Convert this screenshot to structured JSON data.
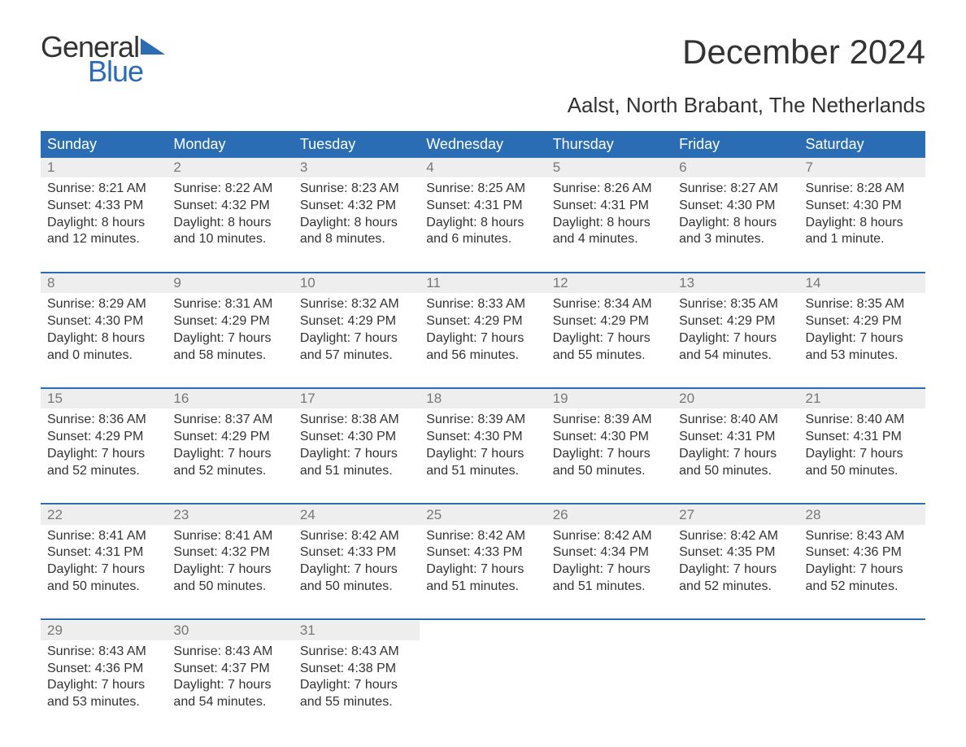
{
  "brand": {
    "line1": "General",
    "line2": "Blue"
  },
  "header": {
    "title": "December 2024",
    "location": "Aalst, North Brabant, The Netherlands"
  },
  "style": {
    "header_bg": "#2a6db5",
    "header_fg": "#ffffff",
    "daynum_bg": "#eeeeee",
    "daynum_fg": "#777777",
    "body_bg": "#ffffff",
    "text_color": "#333333",
    "rule_color": "#2a6db5",
    "brand_accent": "#2a6db5",
    "title_fontsize_pt": 32,
    "location_fontsize_pt": 20,
    "dayhead_fontsize_pt": 14,
    "body_fontsize_pt": 12
  },
  "calendar": {
    "columns": [
      "Sunday",
      "Monday",
      "Tuesday",
      "Wednesday",
      "Thursday",
      "Friday",
      "Saturday"
    ],
    "weeks": [
      [
        {
          "n": "1",
          "sunrise": "8:21 AM",
          "sunset": "4:33 PM",
          "dl1": "Daylight: 8 hours",
          "dl2": "and 12 minutes."
        },
        {
          "n": "2",
          "sunrise": "8:22 AM",
          "sunset": "4:32 PM",
          "dl1": "Daylight: 8 hours",
          "dl2": "and 10 minutes."
        },
        {
          "n": "3",
          "sunrise": "8:23 AM",
          "sunset": "4:32 PM",
          "dl1": "Daylight: 8 hours",
          "dl2": "and 8 minutes."
        },
        {
          "n": "4",
          "sunrise": "8:25 AM",
          "sunset": "4:31 PM",
          "dl1": "Daylight: 8 hours",
          "dl2": "and 6 minutes."
        },
        {
          "n": "5",
          "sunrise": "8:26 AM",
          "sunset": "4:31 PM",
          "dl1": "Daylight: 8 hours",
          "dl2": "and 4 minutes."
        },
        {
          "n": "6",
          "sunrise": "8:27 AM",
          "sunset": "4:30 PM",
          "dl1": "Daylight: 8 hours",
          "dl2": "and 3 minutes."
        },
        {
          "n": "7",
          "sunrise": "8:28 AM",
          "sunset": "4:30 PM",
          "dl1": "Daylight: 8 hours",
          "dl2": "and 1 minute."
        }
      ],
      [
        {
          "n": "8",
          "sunrise": "8:29 AM",
          "sunset": "4:30 PM",
          "dl1": "Daylight: 8 hours",
          "dl2": "and 0 minutes."
        },
        {
          "n": "9",
          "sunrise": "8:31 AM",
          "sunset": "4:29 PM",
          "dl1": "Daylight: 7 hours",
          "dl2": "and 58 minutes."
        },
        {
          "n": "10",
          "sunrise": "8:32 AM",
          "sunset": "4:29 PM",
          "dl1": "Daylight: 7 hours",
          "dl2": "and 57 minutes."
        },
        {
          "n": "11",
          "sunrise": "8:33 AM",
          "sunset": "4:29 PM",
          "dl1": "Daylight: 7 hours",
          "dl2": "and 56 minutes."
        },
        {
          "n": "12",
          "sunrise": "8:34 AM",
          "sunset": "4:29 PM",
          "dl1": "Daylight: 7 hours",
          "dl2": "and 55 minutes."
        },
        {
          "n": "13",
          "sunrise": "8:35 AM",
          "sunset": "4:29 PM",
          "dl1": "Daylight: 7 hours",
          "dl2": "and 54 minutes."
        },
        {
          "n": "14",
          "sunrise": "8:35 AM",
          "sunset": "4:29 PM",
          "dl1": "Daylight: 7 hours",
          "dl2": "and 53 minutes."
        }
      ],
      [
        {
          "n": "15",
          "sunrise": "8:36 AM",
          "sunset": "4:29 PM",
          "dl1": "Daylight: 7 hours",
          "dl2": "and 52 minutes."
        },
        {
          "n": "16",
          "sunrise": "8:37 AM",
          "sunset": "4:29 PM",
          "dl1": "Daylight: 7 hours",
          "dl2": "and 52 minutes."
        },
        {
          "n": "17",
          "sunrise": "8:38 AM",
          "sunset": "4:30 PM",
          "dl1": "Daylight: 7 hours",
          "dl2": "and 51 minutes."
        },
        {
          "n": "18",
          "sunrise": "8:39 AM",
          "sunset": "4:30 PM",
          "dl1": "Daylight: 7 hours",
          "dl2": "and 51 minutes."
        },
        {
          "n": "19",
          "sunrise": "8:39 AM",
          "sunset": "4:30 PM",
          "dl1": "Daylight: 7 hours",
          "dl2": "and 50 minutes."
        },
        {
          "n": "20",
          "sunrise": "8:40 AM",
          "sunset": "4:31 PM",
          "dl1": "Daylight: 7 hours",
          "dl2": "and 50 minutes."
        },
        {
          "n": "21",
          "sunrise": "8:40 AM",
          "sunset": "4:31 PM",
          "dl1": "Daylight: 7 hours",
          "dl2": "and 50 minutes."
        }
      ],
      [
        {
          "n": "22",
          "sunrise": "8:41 AM",
          "sunset": "4:31 PM",
          "dl1": "Daylight: 7 hours",
          "dl2": "and 50 minutes."
        },
        {
          "n": "23",
          "sunrise": "8:41 AM",
          "sunset": "4:32 PM",
          "dl1": "Daylight: 7 hours",
          "dl2": "and 50 minutes."
        },
        {
          "n": "24",
          "sunrise": "8:42 AM",
          "sunset": "4:33 PM",
          "dl1": "Daylight: 7 hours",
          "dl2": "and 50 minutes."
        },
        {
          "n": "25",
          "sunrise": "8:42 AM",
          "sunset": "4:33 PM",
          "dl1": "Daylight: 7 hours",
          "dl2": "and 51 minutes."
        },
        {
          "n": "26",
          "sunrise": "8:42 AM",
          "sunset": "4:34 PM",
          "dl1": "Daylight: 7 hours",
          "dl2": "and 51 minutes."
        },
        {
          "n": "27",
          "sunrise": "8:42 AM",
          "sunset": "4:35 PM",
          "dl1": "Daylight: 7 hours",
          "dl2": "and 52 minutes."
        },
        {
          "n": "28",
          "sunrise": "8:43 AM",
          "sunset": "4:36 PM",
          "dl1": "Daylight: 7 hours",
          "dl2": "and 52 minutes."
        }
      ],
      [
        {
          "n": "29",
          "sunrise": "8:43 AM",
          "sunset": "4:36 PM",
          "dl1": "Daylight: 7 hours",
          "dl2": "and 53 minutes."
        },
        {
          "n": "30",
          "sunrise": "8:43 AM",
          "sunset": "4:37 PM",
          "dl1": "Daylight: 7 hours",
          "dl2": "and 54 minutes."
        },
        {
          "n": "31",
          "sunrise": "8:43 AM",
          "sunset": "4:38 PM",
          "dl1": "Daylight: 7 hours",
          "dl2": "and 55 minutes."
        },
        null,
        null,
        null,
        null
      ]
    ]
  },
  "labels": {
    "sunrise_prefix": "Sunrise: ",
    "sunset_prefix": "Sunset: "
  }
}
